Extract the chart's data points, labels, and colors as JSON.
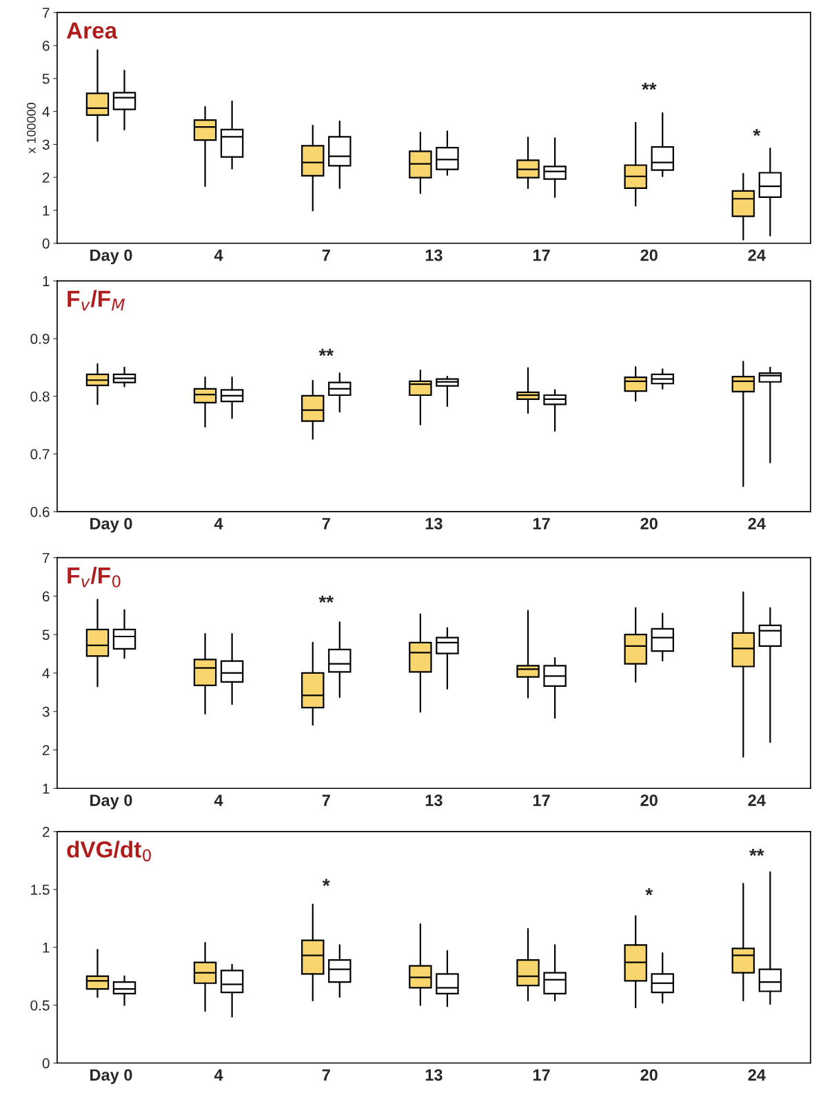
{
  "chart_data": [
    {
      "type": "box",
      "title": "Area",
      "ylabel": "x 100000",
      "categories": [
        "Day 0",
        "4",
        "7",
        "13",
        "17",
        "20",
        "24"
      ],
      "ylim": [
        0,
        7
      ],
      "yticks": [
        0,
        1,
        2,
        3,
        4,
        5,
        6,
        7
      ],
      "grid": false,
      "series": [
        {
          "color": "#f9d56e",
          "boxes": [
            {
              "low": 3.1,
              "q1": 3.89,
              "median": 4.1,
              "q3": 4.55,
              "high": 5.86
            },
            {
              "low": 1.73,
              "q1": 3.13,
              "median": 3.53,
              "q3": 3.74,
              "high": 4.14
            },
            {
              "low": 0.99,
              "q1": 2.05,
              "median": 2.45,
              "q3": 2.96,
              "high": 3.57
            },
            {
              "low": 1.52,
              "q1": 1.99,
              "median": 2.41,
              "q3": 2.79,
              "high": 3.36
            },
            {
              "low": 1.67,
              "q1": 1.99,
              "median": 2.24,
              "q3": 2.52,
              "high": 3.21
            },
            {
              "low": 1.14,
              "q1": 1.67,
              "median": 2.03,
              "q3": 2.37,
              "high": 3.66
            },
            {
              "low": 0.11,
              "q1": 0.82,
              "median": 1.35,
              "q3": 1.59,
              "high": 2.11
            }
          ]
        },
        {
          "color": "#ffffff",
          "boxes": [
            {
              "low": 3.45,
              "q1": 4.06,
              "median": 4.42,
              "q3": 4.57,
              "high": 5.24
            },
            {
              "low": 2.26,
              "q1": 2.62,
              "median": 3.23,
              "q3": 3.45,
              "high": 4.31
            },
            {
              "low": 1.67,
              "q1": 2.35,
              "median": 2.64,
              "q3": 3.23,
              "high": 3.7
            },
            {
              "low": 2.07,
              "q1": 2.24,
              "median": 2.54,
              "q3": 2.9,
              "high": 3.4
            },
            {
              "low": 1.4,
              "q1": 1.95,
              "median": 2.18,
              "q3": 2.33,
              "high": 3.19
            },
            {
              "low": 2.03,
              "q1": 2.22,
              "median": 2.45,
              "q3": 2.92,
              "high": 3.95
            },
            {
              "low": 0.23,
              "q1": 1.4,
              "median": 1.73,
              "q3": 2.14,
              "high": 2.88
            }
          ]
        }
      ],
      "annotations": [
        "**",
        "*"
      ]
    },
    {
      "type": "box",
      "title": "F$_{v}$/F$_{M}$",
      "categories": [
        "Day 0",
        "4",
        "7",
        "13",
        "17",
        "20",
        "24"
      ],
      "ylim": [
        0.6,
        1
      ],
      "yticks": [
        0.6,
        0.7,
        0.8,
        0.9,
        1
      ],
      "grid": false,
      "series": [
        {
          "color": "#f9d56e",
          "boxes": [
            {
              "low": 0.786,
              "q1": 0.819,
              "median": 0.828,
              "q3": 0.838,
              "high": 0.856
            },
            {
              "low": 0.747,
              "q1": 0.789,
              "median": 0.803,
              "q3": 0.813,
              "high": 0.833
            },
            {
              "low": 0.726,
              "q1": 0.757,
              "median": 0.776,
              "q3": 0.801,
              "high": 0.827
            },
            {
              "low": 0.751,
              "q1": 0.802,
              "median": 0.821,
              "q3": 0.826,
              "high": 0.845
            },
            {
              "low": 0.771,
              "q1": 0.795,
              "median": 0.802,
              "q3": 0.807,
              "high": 0.849
            },
            {
              "low": 0.792,
              "q1": 0.809,
              "median": 0.826,
              "q3": 0.833,
              "high": 0.851
            },
            {
              "low": 0.644,
              "q1": 0.808,
              "median": 0.826,
              "q3": 0.834,
              "high": 0.86
            }
          ]
        },
        {
          "color": "#ffffff",
          "boxes": [
            {
              "low": 0.817,
              "q1": 0.824,
              "median": 0.831,
              "q3": 0.838,
              "high": 0.85
            },
            {
              "low": 0.762,
              "q1": 0.791,
              "median": 0.801,
              "q3": 0.811,
              "high": 0.833
            },
            {
              "low": 0.773,
              "q1": 0.802,
              "median": 0.813,
              "q3": 0.824,
              "high": 0.84
            },
            {
              "low": 0.783,
              "q1": 0.818,
              "median": 0.825,
              "q3": 0.83,
              "high": 0.834
            },
            {
              "low": 0.74,
              "q1": 0.786,
              "median": 0.795,
              "q3": 0.802,
              "high": 0.811
            },
            {
              "low": 0.813,
              "q1": 0.822,
              "median": 0.83,
              "q3": 0.838,
              "high": 0.847
            },
            {
              "low": 0.685,
              "q1": 0.825,
              "median": 0.836,
              "q3": 0.84,
              "high": 0.85
            }
          ]
        }
      ],
      "annotations": [
        "**"
      ]
    },
    {
      "type": "box",
      "title": "F$_{v}$/F$_{0}$",
      "categories": [
        "Day 0",
        "4",
        "7",
        "13",
        "17",
        "20",
        "24"
      ],
      "ylim": [
        1,
        7
      ],
      "yticks": [
        1,
        2,
        3,
        4,
        5,
        6,
        7
      ],
      "grid": false,
      "series": [
        {
          "color": "#f9d56e",
          "boxes": [
            {
              "low": 3.65,
              "q1": 4.44,
              "median": 4.72,
              "q3": 5.13,
              "high": 5.91
            },
            {
              "low": 2.94,
              "q1": 3.68,
              "median": 4.13,
              "q3": 4.35,
              "high": 5.02
            },
            {
              "low": 2.65,
              "q1": 3.1,
              "median": 3.42,
              "q3": 4.0,
              "high": 4.79
            },
            {
              "low": 2.99,
              "q1": 4.03,
              "median": 4.53,
              "q3": 4.79,
              "high": 5.53
            },
            {
              "low": 3.36,
              "q1": 3.9,
              "median": 4.1,
              "q3": 4.19,
              "high": 5.62
            },
            {
              "low": 3.77,
              "q1": 4.24,
              "median": 4.7,
              "q3": 5.0,
              "high": 5.69
            },
            {
              "low": 1.82,
              "q1": 4.17,
              "median": 4.64,
              "q3": 5.04,
              "high": 6.1
            }
          ]
        },
        {
          "color": "#ffffff",
          "boxes": [
            {
              "low": 4.39,
              "q1": 4.63,
              "median": 4.95,
              "q3": 5.13,
              "high": 5.64
            },
            {
              "low": 3.19,
              "q1": 3.77,
              "median": 4.0,
              "q3": 4.31,
              "high": 5.02
            },
            {
              "low": 3.37,
              "q1": 4.03,
              "median": 4.24,
              "q3": 4.61,
              "high": 5.32
            },
            {
              "low": 3.59,
              "q1": 4.51,
              "median": 4.79,
              "q3": 4.92,
              "high": 5.17
            },
            {
              "low": 2.83,
              "q1": 3.66,
              "median": 3.92,
              "q3": 4.19,
              "high": 4.39
            },
            {
              "low": 4.32,
              "q1": 4.57,
              "median": 4.92,
              "q3": 5.15,
              "high": 5.55
            },
            {
              "low": 2.2,
              "q1": 4.7,
              "median": 5.1,
              "q3": 5.24,
              "high": 5.69
            }
          ]
        }
      ],
      "annotations": [
        "**"
      ]
    },
    {
      "type": "box",
      "title": "dVG/dt$_{0}$",
      "categories": [
        "Day 0",
        "4",
        "7",
        "13",
        "17",
        "20",
        "24"
      ],
      "ylim": [
        0,
        2
      ],
      "yticks": [
        0,
        0.5,
        1,
        1.5,
        2
      ],
      "grid": false,
      "series": [
        {
          "color": "#f9d56e",
          "boxes": [
            {
              "low": 0.57,
              "q1": 0.64,
              "median": 0.71,
              "q3": 0.75,
              "high": 0.98
            },
            {
              "low": 0.45,
              "q1": 0.69,
              "median": 0.78,
              "q3": 0.87,
              "high": 1.04
            },
            {
              "low": 0.54,
              "q1": 0.77,
              "median": 0.93,
              "q3": 1.06,
              "high": 1.37
            },
            {
              "low": 0.5,
              "q1": 0.65,
              "median": 0.74,
              "q3": 0.84,
              "high": 1.2
            },
            {
              "low": 0.54,
              "q1": 0.67,
              "median": 0.75,
              "q3": 0.89,
              "high": 1.16
            },
            {
              "low": 0.48,
              "q1": 0.71,
              "median": 0.87,
              "q3": 1.02,
              "high": 1.27
            },
            {
              "low": 0.54,
              "q1": 0.78,
              "median": 0.93,
              "q3": 0.99,
              "high": 1.55
            }
          ]
        },
        {
          "color": "#ffffff",
          "boxes": [
            {
              "low": 0.5,
              "q1": 0.6,
              "median": 0.64,
              "q3": 0.7,
              "high": 0.75
            },
            {
              "low": 0.4,
              "q1": 0.61,
              "median": 0.68,
              "q3": 0.8,
              "high": 0.85
            },
            {
              "low": 0.57,
              "q1": 0.7,
              "median": 0.81,
              "q3": 0.89,
              "high": 1.02
            },
            {
              "low": 0.49,
              "q1": 0.6,
              "median": 0.65,
              "q3": 0.77,
              "high": 0.97
            },
            {
              "low": 0.54,
              "q1": 0.6,
              "median": 0.72,
              "q3": 0.78,
              "high": 1.02
            },
            {
              "low": 0.52,
              "q1": 0.61,
              "median": 0.69,
              "q3": 0.77,
              "high": 0.95
            },
            {
              "low": 0.51,
              "q1": 0.62,
              "median": 0.7,
              "q3": 0.81,
              "high": 1.65
            }
          ]
        }
      ],
      "annotations": [
        "*",
        "*",
        "**"
      ]
    }
  ]
}
